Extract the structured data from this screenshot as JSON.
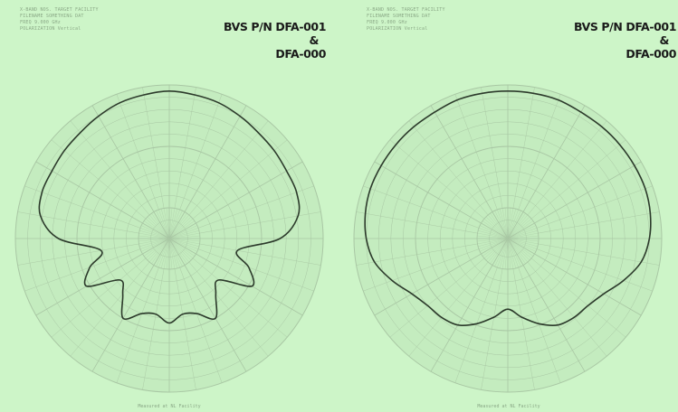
{
  "colors": {
    "background": "#cdf5c8",
    "grid": "#a9c7a4",
    "trace": "#2c3a2b",
    "text": "#1a1a1a"
  },
  "panels": [
    {
      "header_lines": [
        "X-BAND NOS. TARGET FACILITY",
        "FILENAME  SOMETHING DAT",
        "FREQ    9.000  GHz",
        "POLARIZATION  Vertical"
      ],
      "part_number": {
        "line1": "BVS P/N DFA-001",
        "amp": "&",
        "line2": "DFA-000"
      },
      "footer": "Measured at NL Facility"
    },
    {
      "header_lines": [
        "X-BAND NOS. TARGET FACILITY",
        "FILENAME  SOMETHING DAT",
        "FREQ    9.000  GHz",
        "POLARIZATION  Vertical"
      ],
      "part_number": {
        "line1": "BVS P/N DFA-001",
        "amp": "&",
        "line2": "DFA-000"
      },
      "footer": "Measured at NL Facility"
    }
  ],
  "chart_data": [
    {
      "type": "line",
      "coordinate_system": "polar",
      "theta_unit": "degrees",
      "theta_zero": "top",
      "r_range": [
        0,
        1
      ],
      "grid": true,
      "title": "BVS P/N DFA-001 & DFA-000",
      "series": [
        {
          "theta": [
            0,
            10,
            20,
            30,
            40,
            50,
            60,
            70,
            80,
            90,
            100,
            110,
            120,
            130,
            140,
            150,
            160,
            170,
            180,
            190,
            200,
            210,
            220,
            230,
            240,
            250,
            260,
            270,
            280,
            290,
            300,
            310,
            320,
            330,
            340,
            350
          ],
          "r": [
            0.96,
            0.95,
            0.94,
            0.92,
            0.9,
            0.89,
            0.88,
            0.88,
            0.85,
            0.72,
            0.45,
            0.55,
            0.62,
            0.42,
            0.47,
            0.6,
            0.52,
            0.5,
            0.55,
            0.5,
            0.52,
            0.6,
            0.47,
            0.42,
            0.62,
            0.55,
            0.45,
            0.72,
            0.85,
            0.88,
            0.88,
            0.89,
            0.9,
            0.92,
            0.94,
            0.95
          ]
        }
      ]
    },
    {
      "type": "line",
      "coordinate_system": "polar",
      "theta_unit": "degrees",
      "theta_zero": "top",
      "r_range": [
        0,
        1
      ],
      "grid": true,
      "title": "BVS P/N DFA-001 & DFA-000",
      "series": [
        {
          "theta": [
            0,
            10,
            20,
            30,
            40,
            50,
            60,
            70,
            80,
            90,
            100,
            110,
            120,
            130,
            140,
            150,
            160,
            170,
            180,
            190,
            200,
            210,
            220,
            230,
            240,
            250,
            260,
            270,
            280,
            290,
            300,
            310,
            320,
            330,
            340,
            350
          ],
          "r": [
            0.96,
            0.96,
            0.96,
            0.95,
            0.95,
            0.95,
            0.95,
            0.95,
            0.94,
            0.92,
            0.88,
            0.8,
            0.72,
            0.68,
            0.67,
            0.65,
            0.59,
            0.52,
            0.46,
            0.52,
            0.59,
            0.65,
            0.67,
            0.68,
            0.72,
            0.8,
            0.88,
            0.92,
            0.94,
            0.95,
            0.95,
            0.95,
            0.95,
            0.95,
            0.96,
            0.96
          ]
        }
      ]
    }
  ]
}
